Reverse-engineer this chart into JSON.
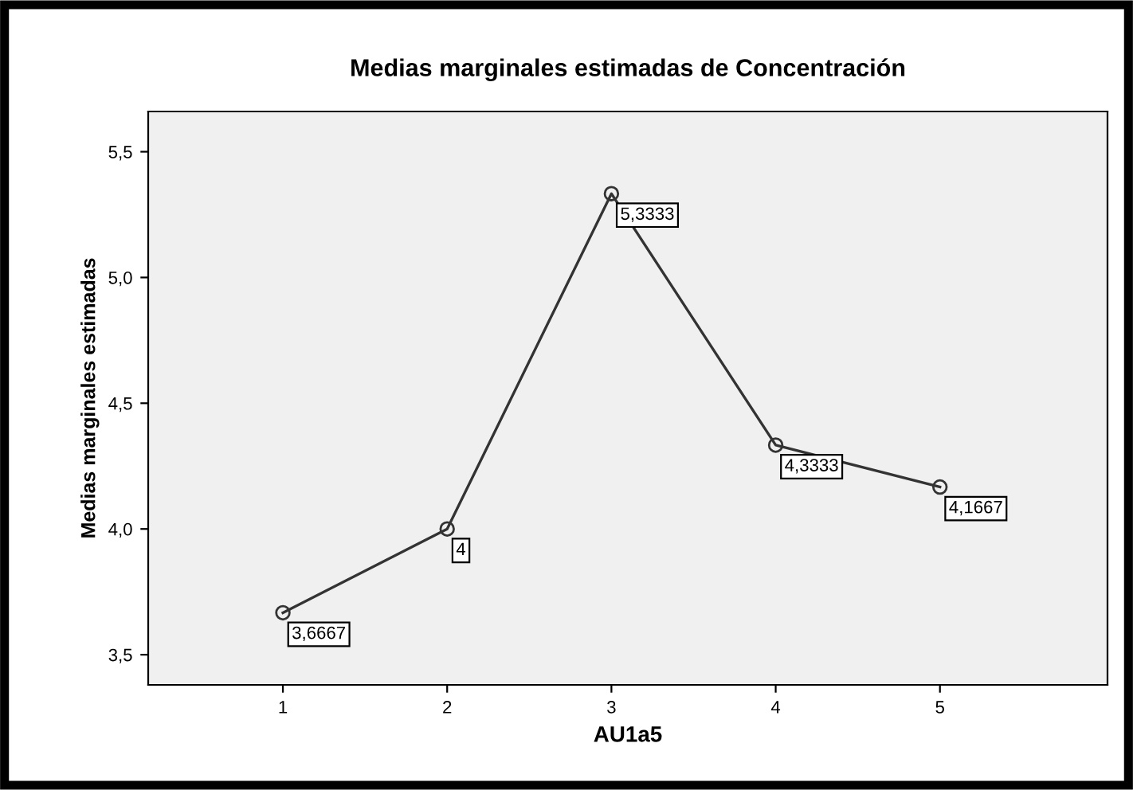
{
  "chart_data": {
    "type": "line",
    "title": "Medias marginales estimadas de Concentración",
    "xlabel": "AU1a5",
    "ylabel": "Medias marginales estimadas",
    "categories": [
      "1",
      "2",
      "3",
      "4",
      "5"
    ],
    "series": [
      {
        "color": "#333333",
        "values": [
          3.6667,
          4,
          5.3333,
          4.3333,
          4.1667
        ],
        "value_labels": [
          "3,6667",
          "4",
          "5,3333",
          "4,3333",
          "4,1667"
        ]
      }
    ],
    "ylim": [
      3.38,
      5.66
    ],
    "yticks": [
      {
        "value": 3.5,
        "label": "3,5"
      },
      {
        "value": 4.0,
        "label": "4,0"
      },
      {
        "value": 4.5,
        "label": "4,5"
      },
      {
        "value": 5.0,
        "label": "5,0"
      },
      {
        "value": 5.5,
        "label": "5,5"
      }
    ],
    "marker": "circle",
    "line_style": "solid",
    "grid": false,
    "legend": false
  }
}
